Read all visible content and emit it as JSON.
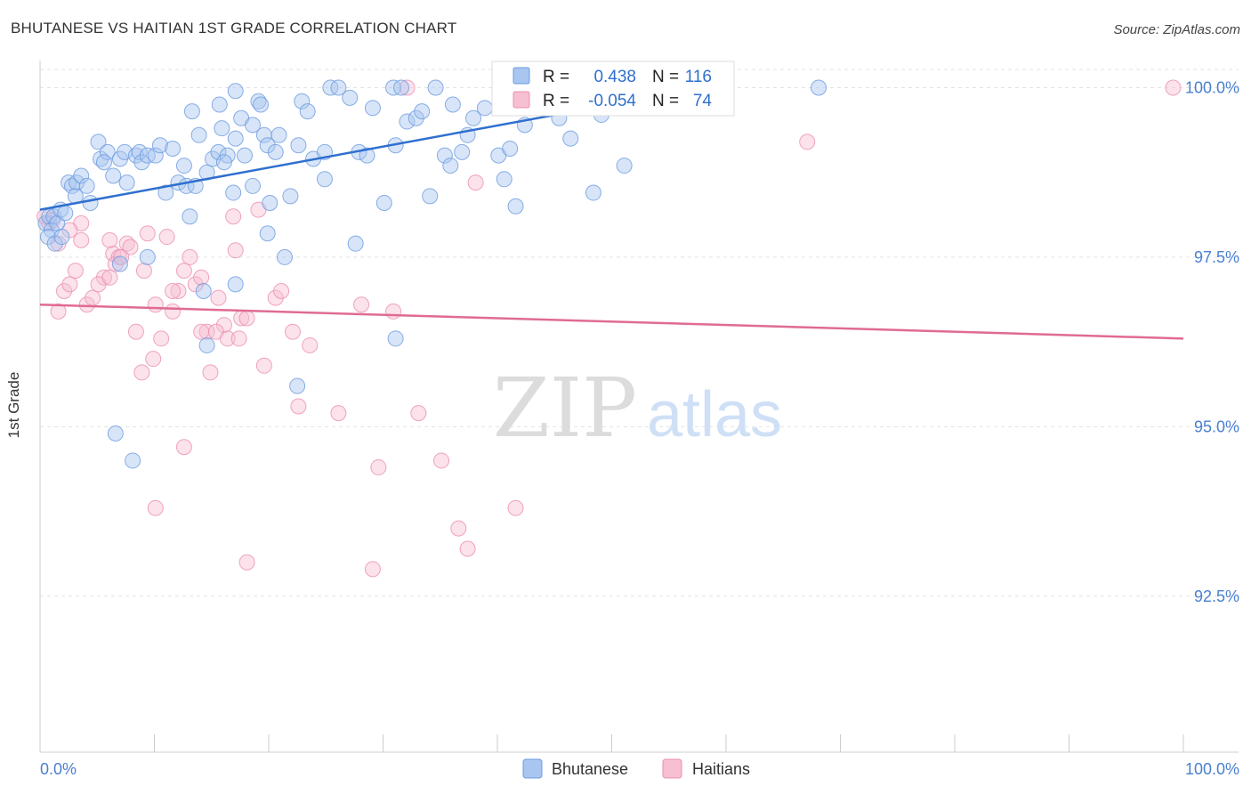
{
  "header": {
    "title": "BHUTANESE VS HAITIAN 1ST GRADE CORRELATION CHART",
    "source": "Source: ZipAtlas.com"
  },
  "watermark": {
    "zip": "ZIP",
    "atlas": "atlas"
  },
  "legend_box": {
    "rows": [
      {
        "r_label": "R =",
        "r_value": "0.438",
        "n_label": "N =",
        "n_value": "116"
      },
      {
        "r_label": "R =",
        "r_value": "-0.054",
        "n_label": "N =",
        "n_value": "74"
      }
    ]
  },
  "colors": {
    "bhutanese": "#6b9be0",
    "bhutanese_fill": "#a8c6f0",
    "bhutanese_line": "#2f6fcf",
    "haitians": "#ec8fb0",
    "haitians_fill": "#f7bfd2",
    "haitians_line": "#e06b94",
    "axis_text": "#4a7fd0"
  },
  "chart_data": {
    "type": "scatter",
    "title": "BHUTANESE VS HAITIAN 1ST GRADE CORRELATION CHART",
    "xlabel": "",
    "ylabel": "1st Grade",
    "xlim": [
      0,
      100
    ],
    "ylim": [
      90.2,
      100.4
    ],
    "x_tick_labels": [
      "0.0%",
      "100.0%"
    ],
    "y_ticks": [
      92.5,
      95.0,
      97.5,
      100.0
    ],
    "y_tick_labels": [
      "92.5%",
      "95.0%",
      "97.5%",
      "100.0%"
    ],
    "grid": true,
    "legend_position": "bottom",
    "series": [
      {
        "name": "Bhutanese",
        "r": 0.438,
        "n": 116,
        "trend": {
          "x": [
            0,
            58
          ],
          "y": [
            98.2,
            100.0
          ]
        },
        "points": [
          [
            0.5,
            98.0
          ],
          [
            0.8,
            98.1
          ],
          [
            1.0,
            97.9
          ],
          [
            1.2,
            98.1
          ],
          [
            1.5,
            98.0
          ],
          [
            0.7,
            97.8
          ],
          [
            1.3,
            97.7
          ],
          [
            1.8,
            98.2
          ],
          [
            2.2,
            98.15
          ],
          [
            1.9,
            97.8
          ],
          [
            2.5,
            98.6
          ],
          [
            2.8,
            98.55
          ],
          [
            3.2,
            98.6
          ],
          [
            3.6,
            98.7
          ],
          [
            3.1,
            98.4
          ],
          [
            4.1,
            98.55
          ],
          [
            4.4,
            98.3
          ],
          [
            5.1,
            99.2
          ],
          [
            5.3,
            98.95
          ],
          [
            5.9,
            99.05
          ],
          [
            5.6,
            98.9
          ],
          [
            6.4,
            98.7
          ],
          [
            7.0,
            98.95
          ],
          [
            7.6,
            98.6
          ],
          [
            7.4,
            99.05
          ],
          [
            8.4,
            99.0
          ],
          [
            8.7,
            99.05
          ],
          [
            8.9,
            98.9
          ],
          [
            9.4,
            99.0
          ],
          [
            10.1,
            99.0
          ],
          [
            10.5,
            99.15
          ],
          [
            11.0,
            98.45
          ],
          [
            11.6,
            99.1
          ],
          [
            12.1,
            98.6
          ],
          [
            12.6,
            98.85
          ],
          [
            12.8,
            98.55
          ],
          [
            13.1,
            98.1
          ],
          [
            13.3,
            99.65
          ],
          [
            13.6,
            98.55
          ],
          [
            13.9,
            99.3
          ],
          [
            14.6,
            98.75
          ],
          [
            15.1,
            98.95
          ],
          [
            15.6,
            99.05
          ],
          [
            15.9,
            99.4
          ],
          [
            15.7,
            99.75
          ],
          [
            16.4,
            99.0
          ],
          [
            16.1,
            98.9
          ],
          [
            17.1,
            99.25
          ],
          [
            16.9,
            98.45
          ],
          [
            17.6,
            99.55
          ],
          [
            17.1,
            99.95
          ],
          [
            17.9,
            99.0
          ],
          [
            18.6,
            98.55
          ],
          [
            18.6,
            99.45
          ],
          [
            19.1,
            99.8
          ],
          [
            19.3,
            99.75
          ],
          [
            19.6,
            99.3
          ],
          [
            19.9,
            99.15
          ],
          [
            20.6,
            99.05
          ],
          [
            20.9,
            99.3
          ],
          [
            19.9,
            97.85
          ],
          [
            21.9,
            98.4
          ],
          [
            21.4,
            97.5
          ],
          [
            22.6,
            99.15
          ],
          [
            22.9,
            99.8
          ],
          [
            23.4,
            99.65
          ],
          [
            23.9,
            98.95
          ],
          [
            24.9,
            99.05
          ],
          [
            24.9,
            98.65
          ],
          [
            25.4,
            100.0
          ],
          [
            26.1,
            100.0
          ],
          [
            27.1,
            99.85
          ],
          [
            27.9,
            99.05
          ],
          [
            27.6,
            97.7
          ],
          [
            28.6,
            99.0
          ],
          [
            29.1,
            99.7
          ],
          [
            30.1,
            98.3
          ],
          [
            30.9,
            100.0
          ],
          [
            31.1,
            99.15
          ],
          [
            32.1,
            99.5
          ],
          [
            32.9,
            99.55
          ],
          [
            33.4,
            99.65
          ],
          [
            31.6,
            100.0
          ],
          [
            34.1,
            98.4
          ],
          [
            34.6,
            100.0
          ],
          [
            35.4,
            99.0
          ],
          [
            35.9,
            98.85
          ],
          [
            36.9,
            99.05
          ],
          [
            37.4,
            99.3
          ],
          [
            36.1,
            99.75
          ],
          [
            37.9,
            99.55
          ],
          [
            38.9,
            99.7
          ],
          [
            40.1,
            99.0
          ],
          [
            40.6,
            98.65
          ],
          [
            41.1,
            99.1
          ],
          [
            41.6,
            98.25
          ],
          [
            42.4,
            99.45
          ],
          [
            43.6,
            99.9
          ],
          [
            44.4,
            100.0
          ],
          [
            45.4,
            99.55
          ],
          [
            46.4,
            99.25
          ],
          [
            47.4,
            100.0
          ],
          [
            48.4,
            98.45
          ],
          [
            49.1,
            99.6
          ],
          [
            49.4,
            99.75
          ],
          [
            51.1,
            98.85
          ],
          [
            54.1,
            100.0
          ],
          [
            58.1,
            100.0
          ],
          [
            59.6,
            100.0
          ],
          [
            68.1,
            100.0
          ],
          [
            7.0,
            97.4
          ],
          [
            9.4,
            97.5
          ],
          [
            14.3,
            97.0
          ],
          [
            14.6,
            96.2
          ],
          [
            17.1,
            97.1
          ],
          [
            20.1,
            98.3
          ],
          [
            31.1,
            96.3
          ],
          [
            6.6,
            94.9
          ],
          [
            8.1,
            94.5
          ],
          [
            22.5,
            95.6
          ]
        ]
      },
      {
        "name": "Haitians",
        "r": -0.054,
        "n": 74,
        "trend": {
          "x": [
            0,
            100
          ],
          "y": [
            96.8,
            96.3
          ]
        },
        "points": [
          [
            0.4,
            98.1
          ],
          [
            0.8,
            98.0
          ],
          [
            1.1,
            98.05
          ],
          [
            1.6,
            97.7
          ],
          [
            2.1,
            97.0
          ],
          [
            2.6,
            97.1
          ],
          [
            3.1,
            97.3
          ],
          [
            3.6,
            97.75
          ],
          [
            3.6,
            98.0
          ],
          [
            4.1,
            96.8
          ],
          [
            4.6,
            96.9
          ],
          [
            5.6,
            97.2
          ],
          [
            6.1,
            97.75
          ],
          [
            6.4,
            97.55
          ],
          [
            6.9,
            97.5
          ],
          [
            7.6,
            97.7
          ],
          [
            7.9,
            97.65
          ],
          [
            8.4,
            96.4
          ],
          [
            8.9,
            95.8
          ],
          [
            9.4,
            97.85
          ],
          [
            9.9,
            96.0
          ],
          [
            10.6,
            96.3
          ],
          [
            11.1,
            97.8
          ],
          [
            11.6,
            96.7
          ],
          [
            12.1,
            97.0
          ],
          [
            12.6,
            97.3
          ],
          [
            13.1,
            97.5
          ],
          [
            13.6,
            97.1
          ],
          [
            14.1,
            97.2
          ],
          [
            14.6,
            96.4
          ],
          [
            14.9,
            95.8
          ],
          [
            15.6,
            96.9
          ],
          [
            16.1,
            96.5
          ],
          [
            16.9,
            98.1
          ],
          [
            17.1,
            97.6
          ],
          [
            17.6,
            96.6
          ],
          [
            18.1,
            96.6
          ],
          [
            19.1,
            98.2
          ],
          [
            19.6,
            95.9
          ],
          [
            20.6,
            96.9
          ],
          [
            21.1,
            97.0
          ],
          [
            22.1,
            96.4
          ],
          [
            22.6,
            95.3
          ],
          [
            23.6,
            96.2
          ],
          [
            26.1,
            95.2
          ],
          [
            28.1,
            96.8
          ],
          [
            29.6,
            94.4
          ],
          [
            30.9,
            96.7
          ],
          [
            32.1,
            100.0
          ],
          [
            33.1,
            95.2
          ],
          [
            35.1,
            94.5
          ],
          [
            36.6,
            93.5
          ],
          [
            37.4,
            93.2
          ],
          [
            38.1,
            98.6
          ],
          [
            41.6,
            93.8
          ],
          [
            67.1,
            99.2
          ],
          [
            99.1,
            100.0
          ],
          [
            1.6,
            96.7
          ],
          [
            2.6,
            97.9
          ],
          [
            5.1,
            97.1
          ],
          [
            6.1,
            97.2
          ],
          [
            6.6,
            97.4
          ],
          [
            10.1,
            96.8
          ],
          [
            11.6,
            97.0
          ],
          [
            12.6,
            94.7
          ],
          [
            14.1,
            96.4
          ],
          [
            15.4,
            96.4
          ],
          [
            16.4,
            96.3
          ],
          [
            17.4,
            96.3
          ],
          [
            10.1,
            93.8
          ],
          [
            18.1,
            93.0
          ],
          [
            29.1,
            92.9
          ],
          [
            7.1,
            97.5
          ],
          [
            9.1,
            97.3
          ]
        ]
      }
    ]
  }
}
